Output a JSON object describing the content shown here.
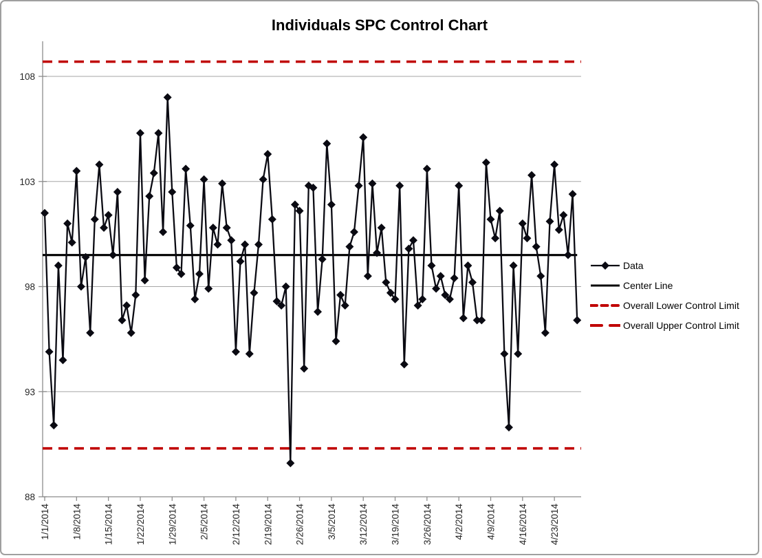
{
  "frame": {
    "background": "#ffffff",
    "border_color": "#9f9f9f"
  },
  "colors": {
    "series": "#0a0a12",
    "center_line": "#000000",
    "control_limit": "#c00000",
    "gridline": "#a6a6a6",
    "axis": "#8c8c8c",
    "tick_label": "#262626",
    "title": "#000000"
  },
  "chart_data": {
    "type": "line",
    "title": "Individuals SPC Control Chart",
    "xlabel": "",
    "ylabel": "",
    "grid": "horizontal",
    "legend_position": "right",
    "x_axis": {
      "start_date": "1/1/2014",
      "end_date": "4/28/2014",
      "tick_labels": [
        "1/1/2014",
        "1/8/2014",
        "1/15/2014",
        "1/22/2014",
        "1/29/2014",
        "2/5/2014",
        "2/12/2014",
        "2/19/2014",
        "2/26/2014",
        "3/5/2014",
        "3/12/2014",
        "3/19/2014",
        "3/26/2014",
        "4/2/2014",
        "4/9/2014",
        "4/16/2014",
        "4/23/2014"
      ],
      "tick_day_indices": [
        0,
        7,
        14,
        21,
        28,
        35,
        42,
        49,
        56,
        63,
        70,
        77,
        84,
        91,
        98,
        105,
        112
      ]
    },
    "y_axis": {
      "ticks": [
        88,
        93,
        98,
        103,
        108
      ],
      "ylim": [
        88,
        109.7
      ]
    },
    "series": [
      {
        "name": "Data",
        "type": "line",
        "marker": "diamond",
        "color": "#0a0a12",
        "dates": [
          "1/1/2014",
          "1/2/2014",
          "1/3/2014",
          "1/4/2014",
          "1/5/2014",
          "1/6/2014",
          "1/7/2014",
          "1/8/2014",
          "1/9/2014",
          "1/10/2014",
          "1/11/2014",
          "1/12/2014",
          "1/13/2014",
          "1/14/2014",
          "1/15/2014",
          "1/16/2014",
          "1/17/2014",
          "1/18/2014",
          "1/19/2014",
          "1/20/2014",
          "1/21/2014",
          "1/22/2014",
          "1/23/2014",
          "1/24/2014",
          "1/25/2014",
          "1/26/2014",
          "1/27/2014",
          "1/28/2014",
          "1/29/2014",
          "1/30/2014",
          "1/31/2014",
          "2/1/2014",
          "2/2/2014",
          "2/3/2014",
          "2/4/2014",
          "2/5/2014",
          "2/6/2014",
          "2/7/2014",
          "2/8/2014",
          "2/9/2014",
          "2/10/2014",
          "2/11/2014",
          "2/12/2014",
          "2/13/2014",
          "2/14/2014",
          "2/15/2014",
          "2/16/2014",
          "2/17/2014",
          "2/18/2014",
          "2/19/2014",
          "2/20/2014",
          "2/21/2014",
          "2/22/2014",
          "2/23/2014",
          "2/24/2014",
          "2/25/2014",
          "2/26/2014",
          "2/27/2014",
          "2/28/2014",
          "3/1/2014",
          "3/2/2014",
          "3/3/2014",
          "3/4/2014",
          "3/5/2014",
          "3/6/2014",
          "3/7/2014",
          "3/8/2014",
          "3/9/2014",
          "3/10/2014",
          "3/11/2014",
          "3/12/2014",
          "3/13/2014",
          "3/14/2014",
          "3/15/2014",
          "3/16/2014",
          "3/17/2014",
          "3/18/2014",
          "3/19/2014",
          "3/20/2014",
          "3/21/2014",
          "3/22/2014",
          "3/23/2014",
          "3/24/2014",
          "3/25/2014",
          "3/26/2014",
          "3/27/2014",
          "3/28/2014",
          "3/29/2014",
          "3/30/2014",
          "3/31/2014",
          "4/1/2014",
          "4/2/2014",
          "4/3/2014",
          "4/4/2014",
          "4/5/2014",
          "4/6/2014",
          "4/7/2014",
          "4/8/2014",
          "4/9/2014",
          "4/10/2014",
          "4/11/2014",
          "4/12/2014",
          "4/13/2014",
          "4/14/2014",
          "4/15/2014",
          "4/16/2014",
          "4/17/2014",
          "4/18/2014",
          "4/19/2014",
          "4/20/2014",
          "4/21/2014",
          "4/22/2014",
          "4/23/2014",
          "4/24/2014",
          "4/25/2014",
          "4/26/2014",
          "4/27/2014",
          "4/28/2014"
        ],
        "values": [
          101.5,
          94.9,
          91.4,
          99.0,
          94.5,
          101.0,
          100.1,
          103.5,
          98.0,
          99.4,
          95.8,
          101.2,
          103.8,
          100.8,
          101.4,
          99.5,
          102.5,
          96.4,
          97.1,
          95.8,
          97.6,
          105.3,
          98.3,
          102.3,
          103.4,
          105.3,
          100.6,
          107.0,
          102.5,
          98.9,
          98.6,
          103.6,
          100.9,
          97.4,
          98.6,
          103.1,
          97.9,
          100.8,
          100.0,
          102.9,
          100.8,
          100.2,
          94.9,
          99.2,
          100.0,
          94.8,
          97.7,
          100.0,
          103.1,
          104.3,
          101.2,
          97.3,
          97.1,
          98.0,
          89.6,
          101.9,
          101.6,
          94.1,
          102.8,
          102.7,
          96.8,
          99.3,
          104.8,
          101.9,
          95.4,
          97.6,
          97.1,
          99.9,
          100.6,
          102.8,
          105.1,
          98.5,
          102.9,
          99.6,
          100.8,
          98.2,
          97.7,
          97.4,
          102.8,
          94.3,
          99.8,
          100.2,
          97.1,
          97.4,
          103.6,
          99.0,
          97.9,
          98.5,
          97.6,
          97.4,
          98.4,
          102.8,
          96.5,
          99.0,
          98.2,
          96.4,
          96.4,
          103.9,
          101.2,
          100.3,
          101.6,
          94.8,
          91.3,
          99.0,
          94.8,
          101.0,
          100.3,
          103.3,
          99.9,
          98.5,
          95.8,
          101.1,
          103.8,
          100.7,
          101.4,
          99.5,
          102.4,
          96.4
        ]
      },
      {
        "name": "Center Line",
        "type": "hline",
        "style": "solid",
        "color": "#000000",
        "value": 99.5
      },
      {
        "name": "Overall Lower Control Limit",
        "type": "hline",
        "style": "dashed",
        "color": "#c00000",
        "value": 90.3
      },
      {
        "name": "Overall Upper Control Limit",
        "type": "hline",
        "style": "dashed",
        "color": "#c00000",
        "value": 108.7
      }
    ],
    "legend": {
      "items": [
        {
          "label": "Data",
          "glyph": "line-diamond",
          "color": "#0a0a12"
        },
        {
          "label": "Center Line",
          "glyph": "line",
          "color": "#000000"
        },
        {
          "label": "Overall Lower Control Limit",
          "glyph": "dashes-short",
          "color": "#c00000"
        },
        {
          "label": "Overall Upper Control Limit",
          "glyph": "dashes-long",
          "color": "#c00000"
        }
      ]
    }
  }
}
